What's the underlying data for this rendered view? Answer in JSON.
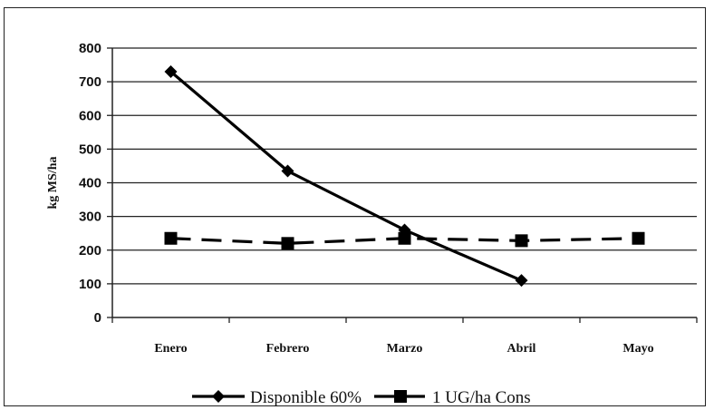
{
  "chart_data": {
    "type": "line",
    "categories": [
      "Enero",
      "Febrero",
      "Marzo",
      "Abril",
      "Mayo"
    ],
    "ylabel": "kg MS/ha",
    "ylim": [
      0,
      800
    ],
    "yticks": [
      0,
      100,
      200,
      300,
      400,
      500,
      600,
      700,
      800
    ],
    "grid": true,
    "legend_position": "bottom",
    "series": [
      {
        "name": "Disponible 60%",
        "values": [
          730,
          435,
          260,
          110,
          null
        ],
        "style": "solid",
        "marker": "diamond",
        "color": "#000000"
      },
      {
        "name": "1 UG/ha Cons",
        "values": [
          235,
          220,
          235,
          228,
          235
        ],
        "style": "dashed",
        "marker": "square",
        "color": "#000000"
      }
    ]
  }
}
